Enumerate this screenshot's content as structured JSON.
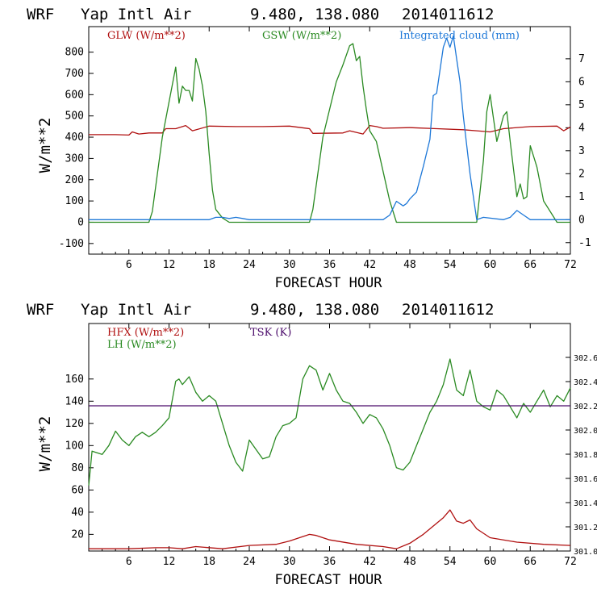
{
  "colors": {
    "red": "#b01010",
    "green": "#2a8a22",
    "blue": "#1e78d8",
    "purple": "#4a0a6a",
    "black": "#000000"
  },
  "chart_data": [
    {
      "type": "line",
      "header": {
        "model": "WRF",
        "station": "Yap Intl Air",
        "coords": "9.480, 138.080",
        "init": "2014011612"
      },
      "xlabel": "FORECAST HOUR",
      "ylabel": "W/m**2",
      "xlim": [
        0,
        72
      ],
      "ylim": [
        -150,
        920
      ],
      "y2lim": [
        -1.5,
        8.4
      ],
      "x_ticks": [
        "6",
        "12",
        "18",
        "24",
        "30",
        "36",
        "42",
        "48",
        "54",
        "60",
        "66",
        "72"
      ],
      "y_ticks": [
        "-100",
        "0",
        "100",
        "200",
        "300",
        "400",
        "500",
        "600",
        "700",
        "800"
      ],
      "y2_ticks": [
        "-1",
        "0",
        "1",
        "2",
        "3",
        "4",
        "5",
        "6",
        "7"
      ],
      "series": [
        {
          "name": "GLW (W/m**2)",
          "color": "#b01010",
          "axis": "left",
          "x": [
            0,
            4,
            6,
            6.5,
            7.5,
            9,
            11,
            11.5,
            13,
            14.5,
            15.5,
            18,
            22,
            26,
            30,
            33,
            33.5,
            38,
            39,
            41,
            42,
            43,
            44,
            48,
            52,
            56,
            58,
            60,
            62,
            66,
            70,
            71,
            72
          ],
          "values": [
            412,
            412,
            410,
            425,
            415,
            420,
            420,
            440,
            440,
            455,
            430,
            452,
            450,
            450,
            452,
            440,
            418,
            420,
            430,
            415,
            455,
            450,
            442,
            445,
            440,
            435,
            430,
            425,
            440,
            450,
            452,
            430,
            448
          ]
        },
        {
          "name": "GSW (W/m**2)",
          "color": "#2a8a22",
          "axis": "left",
          "x": [
            0,
            9,
            9.5,
            11,
            13,
            13.5,
            14,
            14.5,
            15,
            15.5,
            16,
            16.5,
            17,
            17.5,
            18,
            18.5,
            19,
            20,
            21,
            33,
            33.5,
            35,
            37,
            38,
            39,
            39.5,
            40,
            40.5,
            41,
            41.5,
            42,
            43,
            44,
            45,
            46,
            58,
            59,
            59.5,
            60,
            60.5,
            61,
            62,
            62.5,
            63,
            63.5,
            64,
            64.5,
            65,
            65.5,
            66,
            67,
            68,
            70,
            72
          ],
          "values": [
            0,
            0,
            50,
            400,
            730,
            560,
            640,
            620,
            620,
            570,
            770,
            720,
            640,
            520,
            320,
            150,
            60,
            20,
            0,
            0,
            60,
            400,
            660,
            740,
            830,
            840,
            760,
            780,
            640,
            530,
            430,
            380,
            240,
            100,
            0,
            0,
            290,
            520,
            600,
            490,
            380,
            500,
            520,
            380,
            250,
            120,
            180,
            110,
            120,
            360,
            260,
            100,
            0,
            0
          ]
        },
        {
          "name": "Integrated cloud (mm)",
          "color": "#1e78d8",
          "axis": "right",
          "x": [
            0,
            10,
            18,
            19,
            20,
            21,
            22,
            23,
            24,
            25,
            44,
            45,
            46,
            47,
            47.5,
            48,
            49,
            50,
            51,
            51.5,
            52,
            53,
            53.5,
            54,
            54.5,
            55,
            55.5,
            56,
            57,
            58,
            59,
            62,
            63,
            64,
            65,
            66,
            72
          ],
          "values": [
            0,
            0,
            0,
            0.1,
            0.1,
            0.05,
            0.1,
            0.05,
            0,
            0,
            0,
            0.2,
            0.8,
            0.6,
            0.7,
            0.9,
            1.2,
            2.3,
            3.5,
            5.4,
            5.5,
            7.5,
            7.9,
            7.5,
            8.0,
            7.0,
            6.0,
            4.5,
            2.0,
            0,
            0.1,
            0,
            0.1,
            0.4,
            0.2,
            0,
            0
          ]
        }
      ]
    },
    {
      "type": "line",
      "header": {
        "model": "WRF",
        "station": "Yap Intl Air",
        "coords": "9.480, 138.080",
        "init": "2014011612"
      },
      "xlabel": "FORECAST HOUR",
      "ylabel": "W/m**2",
      "xlim": [
        0,
        72
      ],
      "ylim": [
        5,
        210
      ],
      "y2lim": [
        301.0,
        302.88
      ],
      "x_ticks": [
        "6",
        "12",
        "18",
        "24",
        "30",
        "36",
        "42",
        "48",
        "54",
        "60",
        "66",
        "72"
      ],
      "y_ticks": [
        "20",
        "40",
        "60",
        "80",
        "100",
        "120",
        "140",
        "160"
      ],
      "y2_ticks": [
        "301.0",
        "301.2",
        "301.4",
        "301.6",
        "301.8",
        "302.0",
        "302.2",
        "302.4",
        "302.6"
      ],
      "series": [
        {
          "name": "HFX (W/m**2)",
          "color": "#b01010",
          "axis": "left",
          "x": [
            0,
            6,
            10,
            12,
            14,
            16,
            20,
            24,
            28,
            30,
            32,
            33,
            34,
            36,
            40,
            44,
            46,
            48,
            50,
            52,
            53,
            54,
            55,
            56,
            57,
            58,
            60,
            64,
            68,
            72
          ],
          "values": [
            7,
            7,
            8,
            8,
            7,
            9,
            7,
            10,
            11,
            14,
            18,
            20,
            19,
            15,
            11,
            9,
            7,
            12,
            20,
            30,
            35,
            42,
            32,
            30,
            33,
            25,
            17,
            13,
            11,
            10
          ]
        },
        {
          "name": "LH (W/m**2)",
          "color": "#2a8a22",
          "axis": "left",
          "x": [
            0,
            0.5,
            2,
            3,
            4,
            5,
            6,
            7,
            8,
            9,
            10,
            11,
            12,
            13,
            13.5,
            14,
            15,
            16,
            17,
            18,
            19,
            20,
            21,
            22,
            23,
            24,
            26,
            27,
            28,
            29,
            30,
            31,
            32,
            33,
            34,
            35,
            36,
            37,
            38,
            39,
            40,
            41,
            42,
            43,
            44,
            45,
            46,
            47,
            48,
            49,
            50,
            51,
            52,
            53,
            54,
            55,
            56,
            57,
            58,
            59,
            60,
            61,
            62,
            63,
            64,
            65,
            66,
            67,
            68,
            69,
            70,
            71,
            72
          ],
          "values": [
            64,
            95,
            92,
            100,
            113,
            105,
            100,
            108,
            112,
            108,
            112,
            118,
            125,
            158,
            160,
            155,
            162,
            148,
            140,
            145,
            140,
            120,
            100,
            85,
            77,
            105,
            88,
            90,
            108,
            118,
            120,
            125,
            160,
            172,
            168,
            150,
            165,
            150,
            140,
            138,
            130,
            120,
            128,
            125,
            115,
            100,
            80,
            78,
            85,
            100,
            115,
            130,
            140,
            155,
            178,
            150,
            145,
            168,
            140,
            135,
            132,
            150,
            145,
            135,
            125,
            138,
            130,
            140,
            150,
            135,
            145,
            140,
            152
          ]
        },
        {
          "name": "TSK (K)",
          "color": "#4a0a6a",
          "axis": "right",
          "x": [
            0,
            72
          ],
          "values": [
            302.2,
            302.2
          ]
        }
      ]
    }
  ]
}
